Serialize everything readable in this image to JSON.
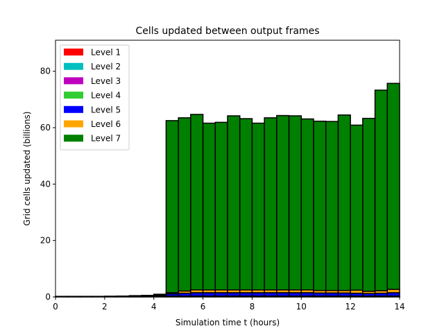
{
  "chart_data": {
    "type": "bar",
    "stacked": true,
    "title": "Cells updated between output frames",
    "xlabel": "Simulation time t (hours)",
    "ylabel": "Grid cells updated (billions)",
    "xlim": [
      0,
      14
    ],
    "ylim": [
      0,
      91
    ],
    "xticks": [
      0,
      2,
      4,
      6,
      8,
      10,
      12,
      14
    ],
    "yticks": [
      0,
      20,
      40,
      60,
      80
    ],
    "grid": false,
    "legend_position": "top-left",
    "bin_width": 0.5,
    "x_start": [
      0,
      0.5,
      1,
      1.5,
      2,
      2.5,
      3,
      3.5,
      4,
      4.5,
      5,
      5.5,
      6,
      6.5,
      7,
      7.5,
      8,
      8.5,
      9,
      9.5,
      10,
      10.5,
      11,
      11.5,
      12,
      12.5,
      13,
      13.5
    ],
    "series": [
      {
        "name": "Level 1",
        "color": "#ff0000",
        "values": [
          0.05,
          0.05,
          0.05,
          0.05,
          0.05,
          0.05,
          0.05,
          0.05,
          0.05,
          0.05,
          0.05,
          0.05,
          0.05,
          0.05,
          0.05,
          0.05,
          0.05,
          0.05,
          0.05,
          0.05,
          0.05,
          0.05,
          0.05,
          0.05,
          0.05,
          0.05,
          0.05,
          0.05
        ]
      },
      {
        "name": "Level 2",
        "color": "#00bfbf",
        "values": [
          0.05,
          0.05,
          0.05,
          0.05,
          0.05,
          0.05,
          0.05,
          0.05,
          0.05,
          0.05,
          0.05,
          0.05,
          0.05,
          0.05,
          0.05,
          0.05,
          0.05,
          0.05,
          0.05,
          0.05,
          0.05,
          0.05,
          0.05,
          0.05,
          0.05,
          0.05,
          0.05,
          0.05
        ]
      },
      {
        "name": "Level 3",
        "color": "#bf00bf",
        "values": [
          0.05,
          0.05,
          0.05,
          0.05,
          0.05,
          0.05,
          0.05,
          0.05,
          0.1,
          0.1,
          0.1,
          0.1,
          0.1,
          0.1,
          0.1,
          0.1,
          0.1,
          0.1,
          0.1,
          0.1,
          0.1,
          0.1,
          0.1,
          0.1,
          0.1,
          0.1,
          0.1,
          0.1
        ]
      },
      {
        "name": "Level 4",
        "color": "#32cd32",
        "values": [
          0.05,
          0.05,
          0.05,
          0.05,
          0.05,
          0.1,
          0.1,
          0.1,
          0.1,
          0.1,
          0.1,
          0.1,
          0.1,
          0.1,
          0.1,
          0.1,
          0.1,
          0.1,
          0.1,
          0.1,
          0.1,
          0.1,
          0.1,
          0.1,
          0.1,
          0.1,
          0.1,
          0.1
        ]
      },
      {
        "name": "Level 5",
        "color": "#0000ff",
        "values": [
          0,
          0,
          0,
          0,
          0.05,
          0.05,
          0.1,
          0.2,
          0.3,
          0.8,
          1.0,
          1.2,
          1.2,
          1.2,
          1.2,
          1.2,
          1.2,
          1.2,
          1.2,
          1.2,
          1.2,
          1.1,
          1.1,
          1.1,
          1.0,
          0.9,
          1.0,
          1.2
        ]
      },
      {
        "name": "Level 6",
        "color": "#ffa500",
        "values": [
          0,
          0,
          0,
          0,
          0,
          0,
          0,
          0,
          0.1,
          0.4,
          0.8,
          1.0,
          1.0,
          1.0,
          1.0,
          1.0,
          1.0,
          1.0,
          1.0,
          1.0,
          1.0,
          0.9,
          0.9,
          0.9,
          1.1,
          0.8,
          0.9,
          1.2
        ]
      },
      {
        "name": "Level 7",
        "color": "#008000",
        "values": [
          0,
          0,
          0,
          0,
          0,
          0,
          0.1,
          0.1,
          0.25,
          61.0,
          61.4,
          62.2,
          59.1,
          59.4,
          61.7,
          60.7,
          59.1,
          61.0,
          61.8,
          61.7,
          60.6,
          60.0,
          59.9,
          62.2,
          58.5,
          61.3,
          71.1,
          73.0
        ]
      }
    ]
  }
}
